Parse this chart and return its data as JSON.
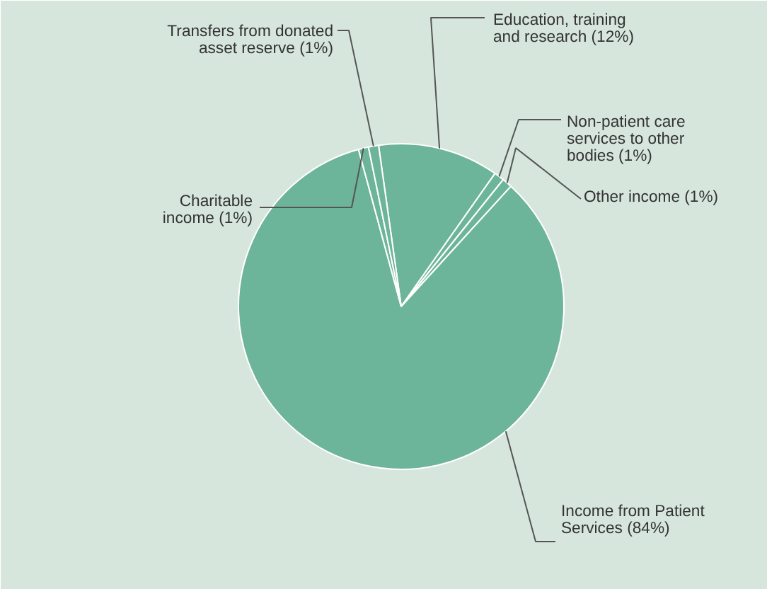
{
  "chart_data": {
    "type": "pie",
    "categories": [
      "Education, training and research",
      "Non-patient care services to other bodies",
      "Other income",
      "Income from Patient Services",
      "Charitable income",
      "Transfers from donated asset reserve"
    ],
    "values": [
      12,
      1,
      1,
      84,
      1,
      1
    ],
    "colors": [
      "#6db59a",
      "#6db59a",
      "#6db59a",
      "#6db59a",
      "#6db59a",
      "#6db59a"
    ],
    "value_labels": [
      "(12%)",
      "(1%)",
      "(1%)",
      "(84%)",
      "(1%)",
      "(1%)"
    ]
  }
}
